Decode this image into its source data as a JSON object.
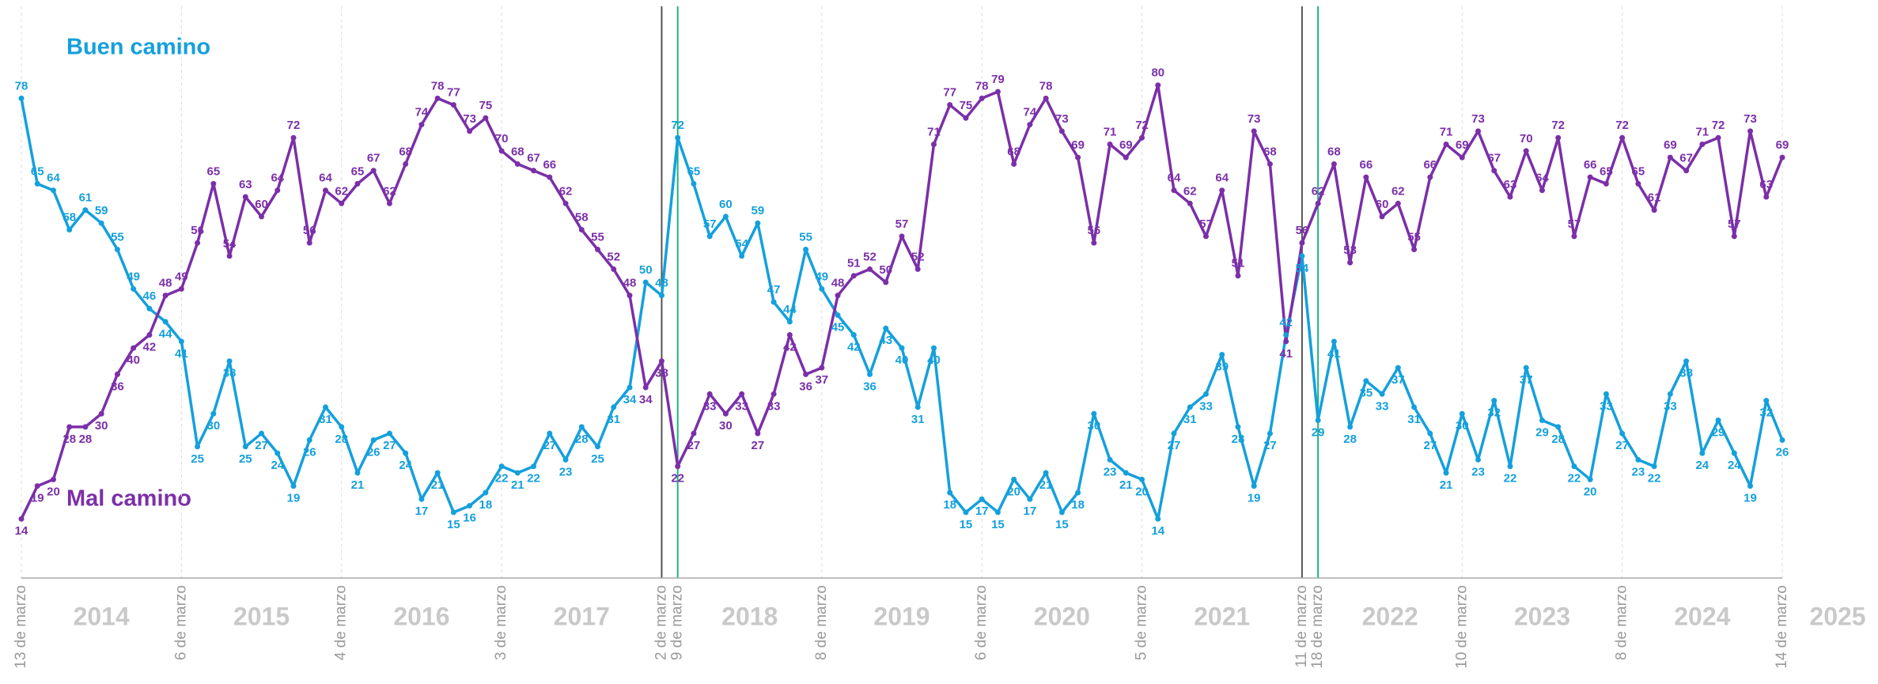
{
  "chart_data": {
    "type": "line",
    "categories": [
      "13 de marzo",
      null,
      null,
      null,
      null,
      null,
      null,
      null,
      null,
      null,
      "6 de marzo",
      null,
      null,
      null,
      null,
      null,
      null,
      null,
      null,
      null,
      "4 de marzo",
      null,
      null,
      null,
      null,
      null,
      null,
      null,
      null,
      null,
      "3 de marzo",
      null,
      null,
      null,
      null,
      null,
      null,
      null,
      null,
      null,
      "2 de marzo",
      "9 de marzo",
      null,
      null,
      null,
      null,
      null,
      null,
      null,
      null,
      "8 de marzo",
      null,
      null,
      null,
      null,
      null,
      null,
      null,
      null,
      null,
      "6 de marzo",
      null,
      null,
      null,
      null,
      null,
      null,
      null,
      null,
      null,
      "5 de marzo",
      null,
      null,
      null,
      null,
      null,
      null,
      null,
      null,
      null,
      "11 de marzo",
      "18 de marzo",
      null,
      null,
      null,
      null,
      null,
      null,
      null,
      null,
      "10 de marzo",
      null,
      null,
      null,
      null,
      null,
      null,
      null,
      null,
      null,
      "8 de marzo",
      null,
      null,
      null,
      null,
      null,
      null,
      null,
      null,
      null,
      "14 de marzo"
    ],
    "tick_colors": [
      null,
      null,
      null,
      null,
      null,
      null,
      null,
      null,
      null,
      null,
      null,
      null,
      null,
      null,
      null,
      null,
      null,
      null,
      null,
      null,
      null,
      null,
      null,
      null,
      null,
      null,
      null,
      null,
      null,
      null,
      null,
      null,
      null,
      null,
      null,
      null,
      null,
      null,
      null,
      null,
      "#555555",
      "#1db37f",
      null,
      null,
      null,
      null,
      null,
      null,
      null,
      null,
      null,
      null,
      null,
      null,
      null,
      null,
      null,
      null,
      null,
      null,
      null,
      null,
      null,
      null,
      null,
      null,
      null,
      null,
      null,
      null,
      null,
      null,
      null,
      null,
      null,
      null,
      null,
      null,
      null,
      null,
      "#555555",
      "#1db37f",
      null,
      null,
      null,
      null,
      null,
      null,
      null,
      null,
      null,
      null,
      null,
      null,
      null,
      null,
      null,
      null,
      null,
      null,
      null,
      null,
      null,
      null,
      null,
      null,
      null,
      null,
      null,
      null,
      null
    ],
    "period_labels": [
      "2014",
      "2015",
      "2016",
      "2017",
      "2018",
      "2019",
      "2020",
      "2021",
      "2022",
      "2023",
      "2024",
      "2025"
    ],
    "ylim": [
      5,
      92
    ],
    "series": [
      {
        "name": "Buen camino",
        "color": "#14a0dc",
        "values": [
          78,
          65,
          64,
          58,
          61,
          59,
          55,
          49,
          46,
          44,
          41,
          25,
          30,
          38,
          25,
          27,
          24,
          19,
          26,
          31,
          28,
          21,
          26,
          27,
          24,
          17,
          21,
          15,
          16,
          18,
          22,
          21,
          22,
          27,
          23,
          28,
          25,
          31,
          34,
          50,
          48,
          72,
          65,
          57,
          60,
          54,
          59,
          47,
          44,
          55,
          49,
          45,
          42,
          36,
          43,
          40,
          31,
          40,
          18,
          15,
          17,
          15,
          20,
          17,
          21,
          15,
          18,
          30,
          23,
          21,
          20,
          14,
          27,
          31,
          33,
          39,
          28,
          19,
          27,
          42,
          54,
          29,
          41,
          28,
          35,
          33,
          37,
          31,
          27,
          21,
          30,
          23,
          32,
          22,
          37,
          29,
          28,
          22,
          20,
          33,
          27,
          23,
          22,
          33,
          38,
          24,
          29,
          24,
          19,
          32,
          26
        ]
      },
      {
        "name": "Mal camino",
        "color": "#7b2fa8",
        "values": [
          14,
          19,
          20,
          28,
          28,
          30,
          36,
          40,
          42,
          48,
          49,
          56,
          65,
          54,
          63,
          60,
          64,
          72,
          56,
          64,
          62,
          65,
          67,
          62,
          68,
          74,
          78,
          77,
          73,
          75,
          70,
          68,
          67,
          66,
          62,
          58,
          55,
          52,
          48,
          34,
          38,
          22,
          27,
          33,
          30,
          33,
          27,
          33,
          42,
          36,
          37,
          48,
          51,
          52,
          50,
          57,
          52,
          71,
          77,
          75,
          78,
          79,
          68,
          74,
          78,
          73,
          69,
          56,
          71,
          69,
          72,
          80,
          64,
          62,
          57,
          64,
          51,
          73,
          68,
          41,
          56,
          62,
          68,
          53,
          66,
          60,
          62,
          55,
          66,
          71,
          69,
          73,
          67,
          63,
          70,
          64,
          72,
          57,
          66,
          65,
          72,
          65,
          61,
          69,
          67,
          71,
          72,
          57,
          73,
          63,
          69
        ]
      }
    ]
  }
}
